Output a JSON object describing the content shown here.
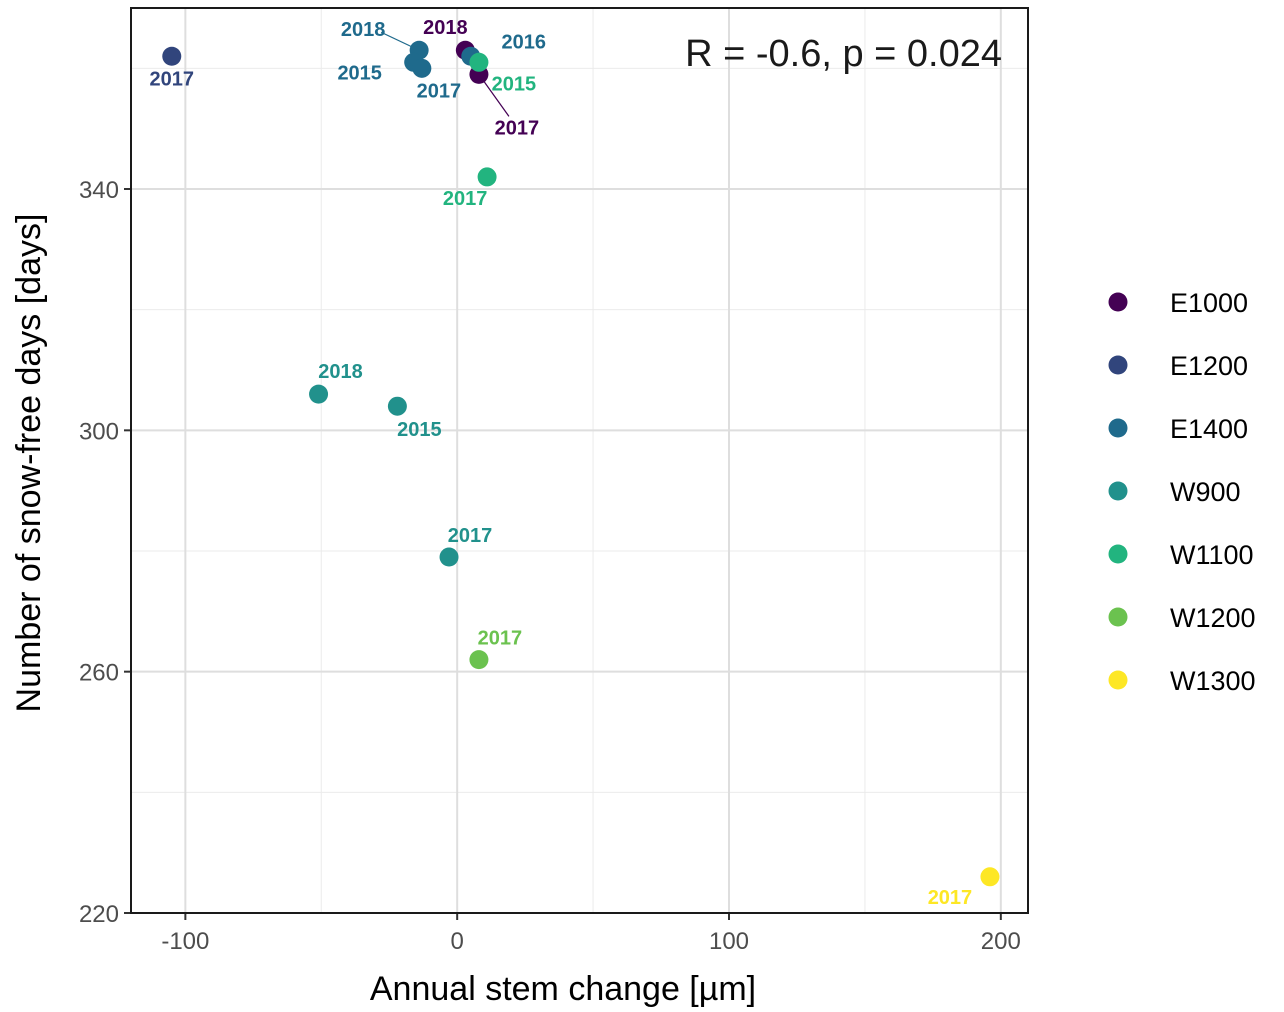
{
  "chart_data": {
    "type": "scatter",
    "xlabel": "Annual stem change [µm]",
    "ylabel": "Number of snow-free days [days]",
    "annotation": "R = -0.6, p = 0.024",
    "xlim": [
      -120,
      210
    ],
    "ylim": [
      220,
      370
    ],
    "x_ticks": [
      -100,
      0,
      100,
      200
    ],
    "y_ticks": [
      220,
      260,
      300,
      340
    ],
    "grid": true,
    "legend_position": "right",
    "series": [
      {
        "name": "E1000",
        "color": "#440154",
        "points": [
          {
            "x": 3,
            "y": 363,
            "label": "2018"
          },
          {
            "x": 8,
            "y": 359,
            "label": "2017"
          }
        ]
      },
      {
        "name": "E1200",
        "color": "#31457c",
        "points": [
          {
            "x": -105,
            "y": 362,
            "label": "2017"
          }
        ]
      },
      {
        "name": "E1400",
        "color": "#1f6a8c",
        "points": [
          {
            "x": -14,
            "y": 363,
            "label": "2018"
          },
          {
            "x": -16,
            "y": 361,
            "label": "2015"
          },
          {
            "x": -13,
            "y": 360,
            "label": "2017"
          },
          {
            "x": 5,
            "y": 362,
            "label": "2016"
          }
        ]
      },
      {
        "name": "W900",
        "color": "#21918c",
        "points": [
          {
            "x": -51,
            "y": 306,
            "label": "2018"
          },
          {
            "x": -22,
            "y": 304,
            "label": "2015"
          },
          {
            "x": -3,
            "y": 279,
            "label": "2017"
          }
        ]
      },
      {
        "name": "W1100",
        "color": "#22b47f",
        "points": [
          {
            "x": 8,
            "y": 361,
            "label": "2015"
          },
          {
            "x": 11,
            "y": 342,
            "label": "2017"
          }
        ]
      },
      {
        "name": "W1200",
        "color": "#6bc24f",
        "points": [
          {
            "x": 8,
            "y": 262,
            "label": "2017"
          }
        ]
      },
      {
        "name": "W1300",
        "color": "#fde725",
        "points": [
          {
            "x": 196,
            "y": 226,
            "label": "2017"
          }
        ]
      }
    ]
  }
}
